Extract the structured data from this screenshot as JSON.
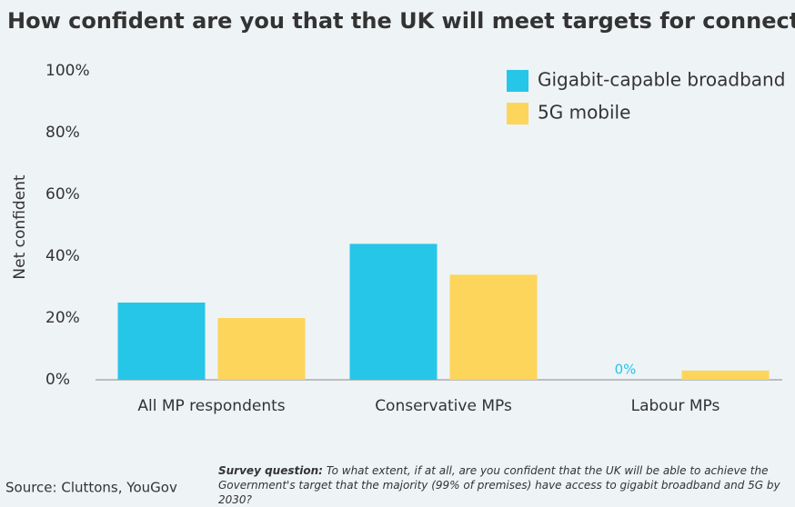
{
  "chart_data": {
    "type": "bar",
    "title": "How confident are you that the UK will meet targets for connectivity?",
    "y_label": "Net confident",
    "categories": [
      "All MP respondents",
      "Conservative MPs",
      "Labour MPs"
    ],
    "series": [
      {
        "name": "Gigabit-capable broadband",
        "color": "#26c6e8",
        "values": [
          25,
          44,
          0
        ],
        "value_labels": [
          null,
          null,
          "0%"
        ]
      },
      {
        "name": "5G mobile",
        "color": "#fdd55b",
        "values": [
          20,
          34,
          3
        ]
      }
    ],
    "ylim": [
      0,
      100
    ],
    "yticks": [
      {
        "value": 0,
        "label": "0%"
      },
      {
        "value": 20,
        "label": "20%"
      },
      {
        "value": 40,
        "label": "40%"
      },
      {
        "value": 60,
        "label": "60%"
      },
      {
        "value": 80,
        "label": "80%"
      },
      {
        "value": 100,
        "label": "100%"
      }
    ],
    "legend": "top-right",
    "source": "Source: Cluttons, YouGov",
    "note_label": "Survey question:",
    "note": "To what extent, if at all, are you confident that the UK will be able to achieve the Government's target that the majority (99% of premises) have access to gigabit broadband and 5G by 2030?"
  }
}
